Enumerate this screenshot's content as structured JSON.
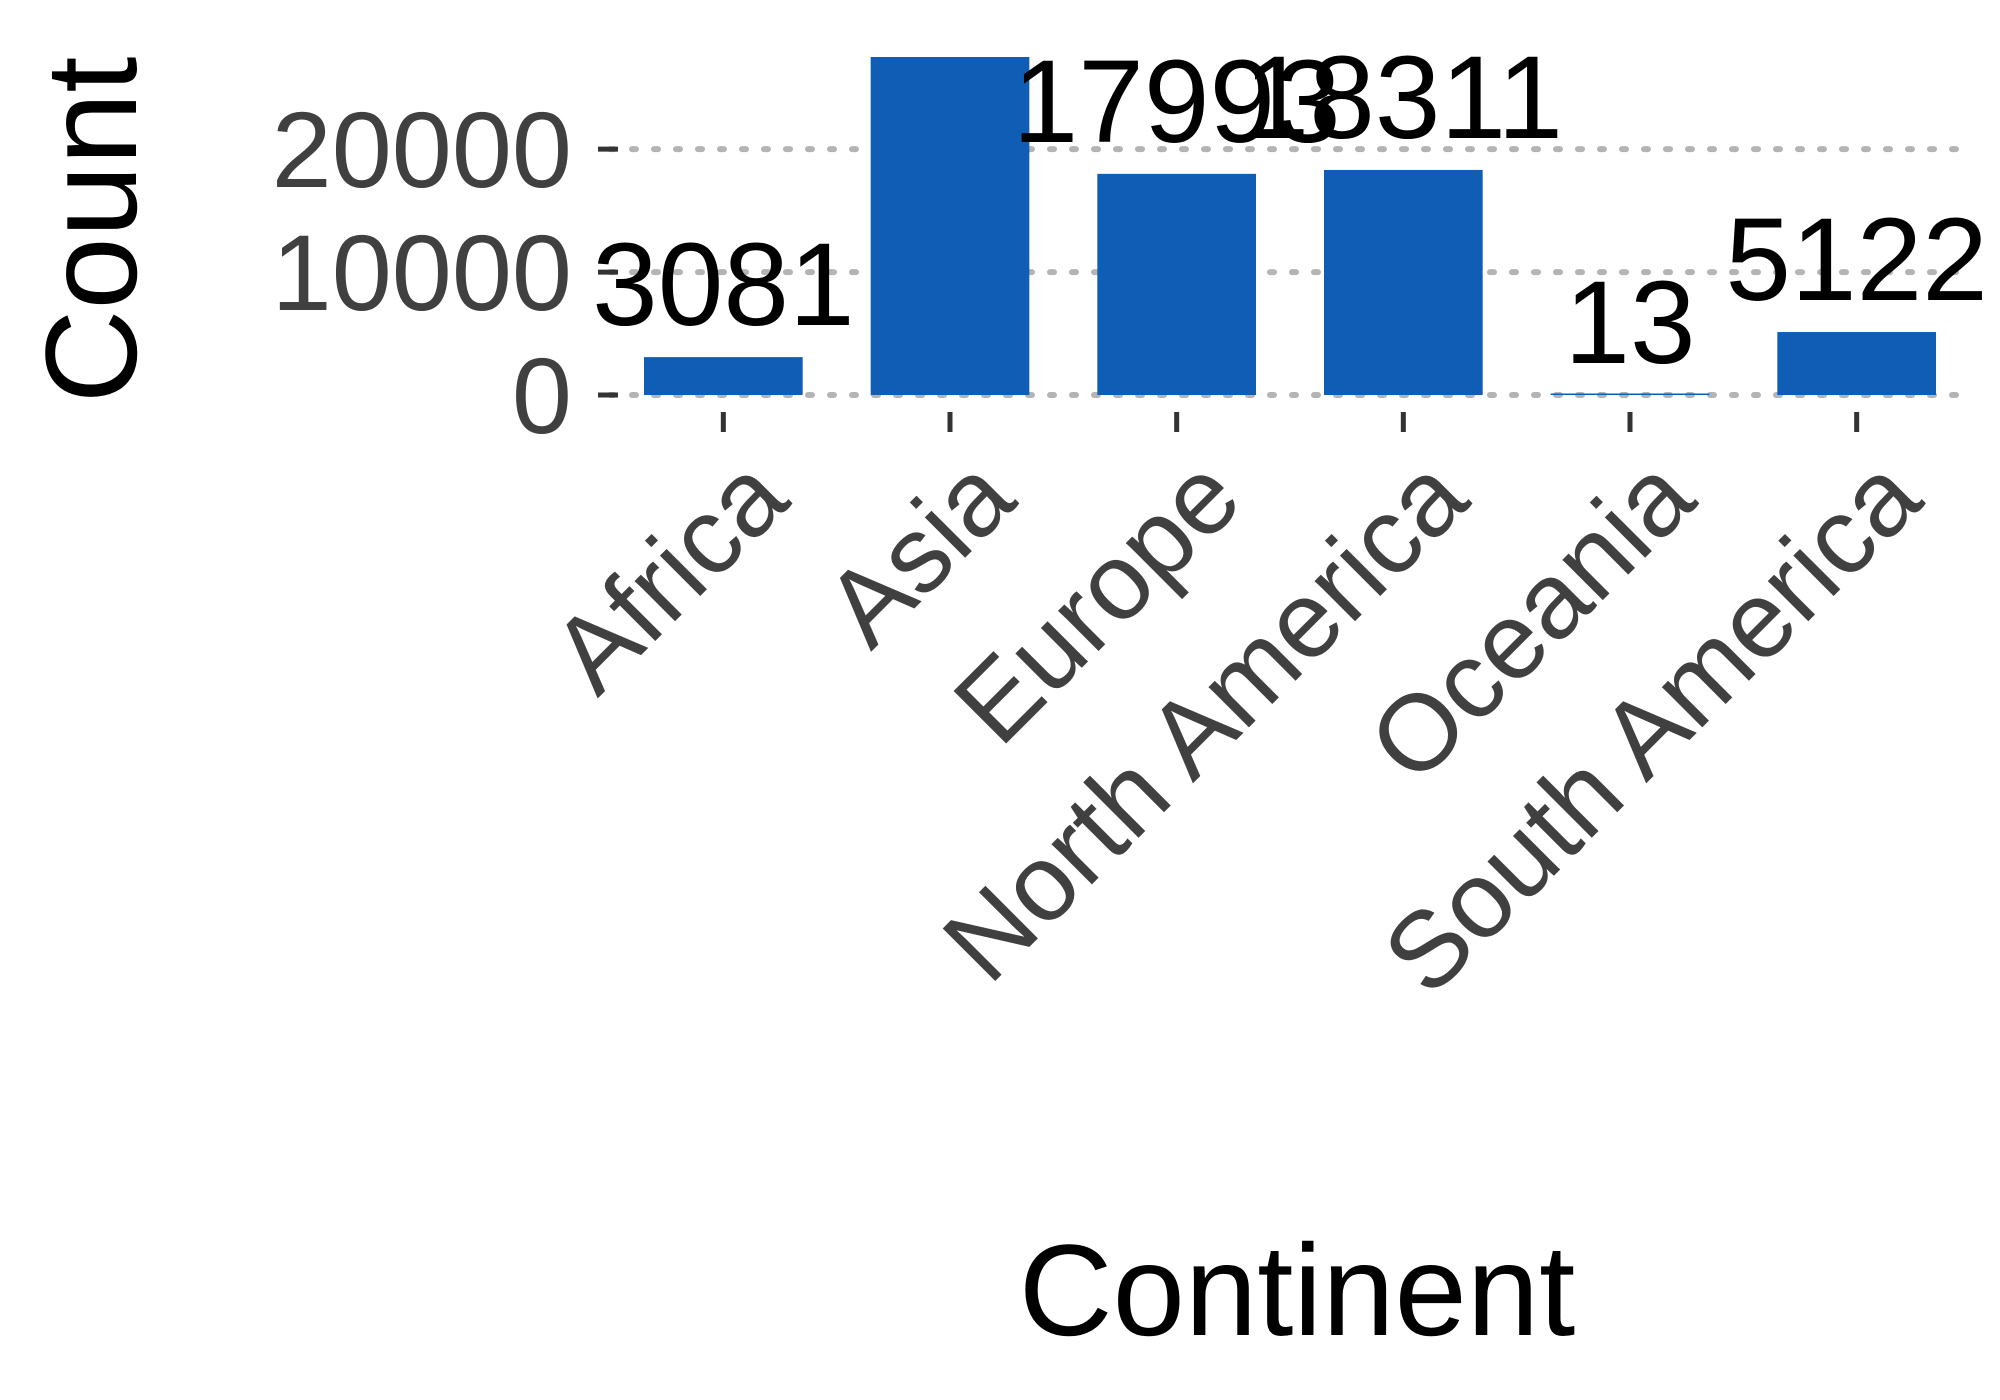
{
  "chart_data": {
    "type": "bar",
    "categories": [
      "Africa",
      "Asia",
      "Europe",
      "North America",
      "Oceania",
      "South America"
    ],
    "values": [
      3081,
      27500,
      17993,
      18311,
      13,
      5122
    ],
    "labels": [
      "3081",
      "",
      "17993",
      "18311",
      "13",
      "5122"
    ],
    "xlabel": "Continent",
    "ylabel": "Count",
    "ylim": [
      0,
      27500
    ],
    "yticks": [
      0,
      10000,
      20000
    ],
    "ytick_labels": [
      "0",
      "10000",
      "20000"
    ],
    "grid": "horizontal dotted",
    "legend": "none",
    "colors": {
      "bar": "#0f5db5",
      "gridline": "#b4b4b4",
      "tick_text": "#404040"
    }
  }
}
